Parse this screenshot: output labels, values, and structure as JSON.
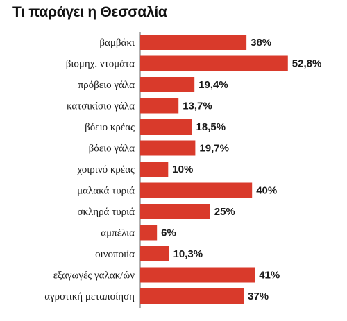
{
  "chart_data": {
    "type": "bar",
    "orientation": "horizontal",
    "title": "Τι παράγει η Θεσσαλία",
    "categories": [
      "βαμβάκι",
      "βιομηχ. ντομάτα",
      "πρόβειο γάλα",
      "κατσικίσιο γάλα",
      "βόειο κρέας",
      "βόειο γάλα",
      "χοιρινό κρέας",
      "μαλακά τυριά",
      "σκληρά τυριά",
      "αμπέλια",
      "οινοποιία",
      "εξαγωγές γαλακ/ών",
      "αγροτική μεταποίηση"
    ],
    "values": [
      38,
      52.8,
      19.4,
      13.7,
      18.5,
      19.7,
      10,
      40,
      25,
      6,
      10.3,
      41,
      37
    ],
    "value_labels": [
      "38%",
      "52,8%",
      "19,4%",
      "13,7%",
      "18,5%",
      "19,7%",
      "10%",
      "40%",
      "25%",
      "6%",
      "10,3%",
      "41%",
      "37%"
    ],
    "unit": "%",
    "bar_color": "#d93a2b",
    "grid": false,
    "legend": "none"
  }
}
